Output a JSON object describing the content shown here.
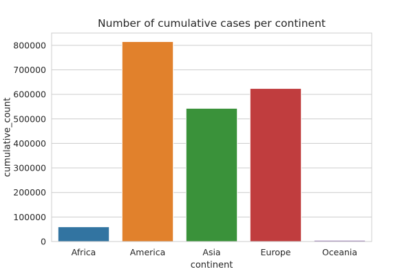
{
  "chart_data": {
    "type": "bar",
    "title": "Number of cumulative cases per continent",
    "xlabel": "continent",
    "ylabel": "cumulative_count",
    "categories": [
      "Africa",
      "America",
      "Asia",
      "Europe",
      "Oceania"
    ],
    "values": [
      60000,
      815000,
      543000,
      624000,
      5000
    ],
    "colors": [
      "#3274a1",
      "#e1812c",
      "#3a923a",
      "#c03d3e",
      "#9372b2"
    ],
    "ylim": [
      0,
      850000
    ],
    "yticks": [
      0,
      100000,
      200000,
      300000,
      400000,
      500000,
      600000,
      700000,
      800000
    ],
    "grid": "y",
    "legend": "none"
  }
}
